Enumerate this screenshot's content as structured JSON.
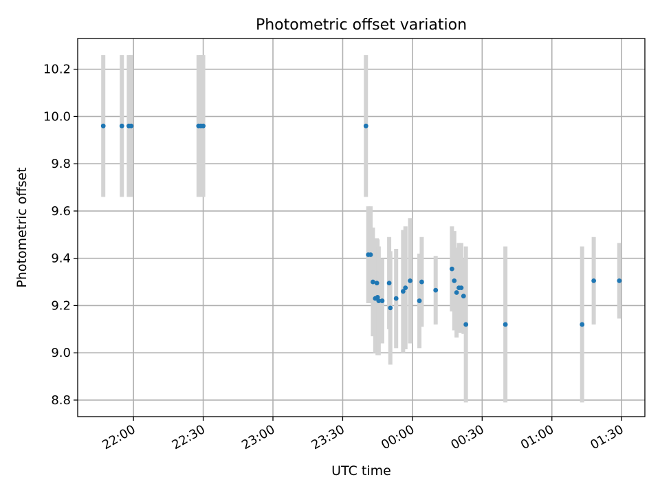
{
  "chart_data": {
    "type": "scatter",
    "title": "Photometric offset variation",
    "xlabel": "UTC time",
    "ylabel": "Photometric offset",
    "x_unit": "UTC time (HH:MM)",
    "xlim": [
      "21:36",
      "01:40"
    ],
    "ylim": [
      8.73,
      10.33
    ],
    "grid": true,
    "x_ticks": [
      "22:00",
      "22:30",
      "23:00",
      "23:30",
      "00:00",
      "00:30",
      "01:00",
      "01:30"
    ],
    "y_ticks": [
      "8.8",
      "9.0",
      "9.2",
      "9.4",
      "9.6",
      "9.8",
      "10.0",
      "10.2"
    ],
    "colors": {
      "marker": "#1f77b4",
      "errorbar": "#d3d3d3",
      "grid": "#b0b0b0"
    },
    "series": [
      {
        "points": [
          {
            "x": "21:47",
            "y": 9.96,
            "err": 0.3
          },
          {
            "x": "21:55",
            "y": 9.96,
            "err": 0.3
          },
          {
            "x": "21:58",
            "y": 9.96,
            "err": 0.3
          },
          {
            "x": "21:59",
            "y": 9.96,
            "err": 0.3
          },
          {
            "x": "22:28",
            "y": 9.96,
            "err": 0.3
          },
          {
            "x": "22:29",
            "y": 9.96,
            "err": 0.3
          },
          {
            "x": "22:30",
            "y": 9.96,
            "err": 0.3
          },
          {
            "x": "23:40",
            "y": 9.96,
            "err": 0.3
          },
          {
            "x": "23:41",
            "y": 9.415,
            "err": 0.205
          },
          {
            "x": "23:42",
            "y": 9.415,
            "err": 0.205
          },
          {
            "x": "23:43",
            "y": 9.3,
            "err": 0.23
          },
          {
            "x": "23:44",
            "y": 9.23,
            "err": 0.23
          },
          {
            "x": "23:44.7",
            "y": 9.295,
            "err": 0.19
          },
          {
            "x": "23:45",
            "y": 9.235,
            "err": 0.245
          },
          {
            "x": "23:45.5",
            "y": 9.22,
            "err": 0.23
          },
          {
            "x": "23:47",
            "y": 9.22,
            "err": 0.18
          },
          {
            "x": "23:50",
            "y": 9.295,
            "err": 0.195
          },
          {
            "x": "23:50.5",
            "y": 9.19,
            "err": 0.24
          },
          {
            "x": "23:53",
            "y": 9.23,
            "err": 0.21
          },
          {
            "x": "23:56",
            "y": 9.26,
            "err": 0.26
          },
          {
            "x": "23:57",
            "y": 9.275,
            "err": 0.26
          },
          {
            "x": "23:59",
            "y": 9.305,
            "err": 0.265
          },
          {
            "x": "00:03",
            "y": 9.22,
            "err": 0.2
          },
          {
            "x": "00:04",
            "y": 9.3,
            "err": 0.19
          },
          {
            "x": "00:10",
            "y": 9.265,
            "err": 0.145
          },
          {
            "x": "00:17",
            "y": 9.355,
            "err": 0.18
          },
          {
            "x": "00:18",
            "y": 9.305,
            "err": 0.21
          },
          {
            "x": "00:19",
            "y": 9.255,
            "err": 0.19
          },
          {
            "x": "00:20",
            "y": 9.275,
            "err": 0.19
          },
          {
            "x": "00:21",
            "y": 9.275,
            "err": 0.19
          },
          {
            "x": "00:22",
            "y": 9.24,
            "err": 0.16
          },
          {
            "x": "00:23",
            "y": 9.12,
            "err": 0.33
          },
          {
            "x": "00:40",
            "y": 9.12,
            "err": 0.33
          },
          {
            "x": "01:13",
            "y": 9.12,
            "err": 0.33
          },
          {
            "x": "01:18",
            "y": 9.305,
            "err": 0.185
          },
          {
            "x": "01:29",
            "y": 9.305,
            "err": 0.16
          }
        ]
      }
    ]
  }
}
